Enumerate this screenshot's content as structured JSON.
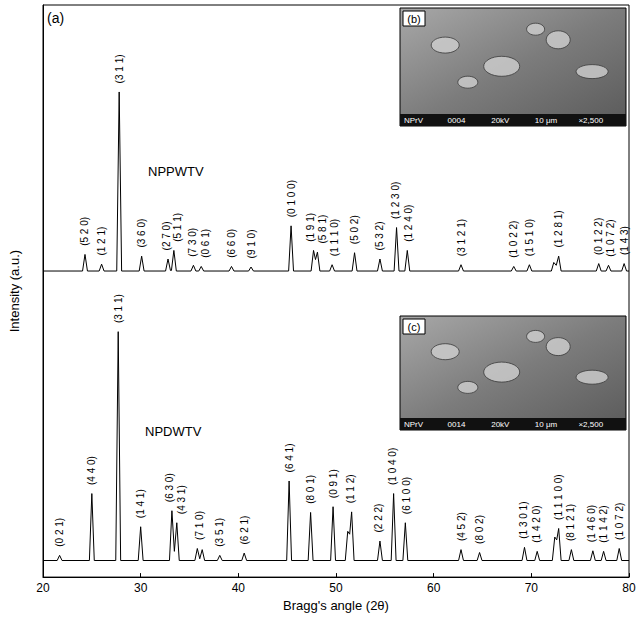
{
  "chart_data": {
    "type": "line",
    "panel_label": "(a)",
    "x_label": "Bragg's angle (2θ)",
    "y_label": "Intensity (a.u.)",
    "xlim": [
      20,
      80
    ],
    "xticks": [
      20,
      30,
      40,
      50,
      60,
      70,
      80
    ],
    "ylim": [
      0,
      100
    ],
    "yticks": [],
    "grid": false,
    "tick_labels": "x",
    "series": [
      {
        "name": "NPPWTV",
        "color": "#000000",
        "x": [
          20,
          24.05,
          24.3,
          24.55,
          25.75,
          26.0,
          26.25,
          27.55,
          27.8,
          28.05,
          29.85,
          30.1,
          30.35,
          32.55,
          32.8,
          33.05,
          33.15,
          33.4,
          33.65,
          35.15,
          35.4,
          35.65,
          35.95,
          36.2,
          36.45,
          39.05,
          39.3,
          39.55,
          41.05,
          41.3,
          41.55,
          45.15,
          45.4,
          45.65,
          47.45,
          47.7,
          47.9,
          48.1,
          48.35,
          49.35,
          49.6,
          49.85,
          51.65,
          51.9,
          52.15,
          54.25,
          54.5,
          54.75,
          55.95,
          56.2,
          56.45,
          57.05,
          57.3,
          57.55,
          62.55,
          62.8,
          63.05,
          67.95,
          68.2,
          68.45,
          69.55,
          69.8,
          70.05,
          72.05,
          72.3,
          72.55,
          72.8,
          73.05,
          76.65,
          76.9,
          77.15,
          77.65,
          77.9,
          78.15,
          79.25,
          79.5,
          79.75,
          80
        ],
        "values": [
          53.5,
          53.5,
          56.4,
          53.5,
          53.5,
          54.7,
          53.5,
          53.5,
          84.8,
          53.5,
          53.5,
          56.1,
          53.5,
          53.5,
          55.6,
          53.6,
          53.6,
          57.1,
          53.5,
          53.5,
          54.5,
          53.5,
          53.5,
          54.3,
          53.5,
          53.5,
          54.3,
          53.5,
          53.5,
          54.2,
          53.5,
          53.5,
          61.4,
          53.5,
          53.5,
          57.1,
          55.5,
          56.8,
          53.5,
          53.5,
          54.6,
          53.5,
          53.5,
          56.7,
          53.5,
          53.5,
          55.6,
          53.5,
          53.5,
          61.1,
          53.5,
          53.5,
          57.1,
          53.5,
          53.5,
          54.6,
          53.5,
          53.5,
          54.3,
          53.5,
          53.5,
          54.6,
          53.5,
          53.5,
          55.0,
          54.5,
          56.1,
          53.5,
          53.5,
          54.8,
          53.5,
          53.5,
          54.5,
          53.5,
          53.5,
          54.8,
          53.5,
          53.5
        ],
        "annotations": [
          {
            "text": "(5 2 0)",
            "x": 24.3,
            "y": 57.9
          },
          {
            "text": "(1 2 1)",
            "x": 26.0,
            "y": 56.2
          },
          {
            "text": "(3 1 1)",
            "x": 27.8,
            "y": 86.3
          },
          {
            "text": "(3 6 0)",
            "x": 30.1,
            "y": 57.6
          },
          {
            "text": "(2 7 0)",
            "x": 32.6,
            "y": 57.1
          },
          {
            "text": "(5 1 1)",
            "x": 33.8,
            "y": 58.6
          },
          {
            "text": "(7 3 0)",
            "x": 35.3,
            "y": 56.0
          },
          {
            "text": "(0 6 1)",
            "x": 36.6,
            "y": 55.8
          },
          {
            "text": "(6 6 0)",
            "x": 39.3,
            "y": 55.8
          },
          {
            "text": "(9 1 0)",
            "x": 41.3,
            "y": 55.7
          },
          {
            "text": "(0 1 0 0)",
            "x": 45.4,
            "y": 62.9
          },
          {
            "text": "(1 9 1)",
            "x": 47.4,
            "y": 58.6
          },
          {
            "text": "(5 8 1)",
            "x": 48.6,
            "y": 58.3
          },
          {
            "text": "(1 1 1 0)",
            "x": 49.8,
            "y": 56.1
          },
          {
            "text": "(5 0 2)",
            "x": 51.9,
            "y": 58.2
          },
          {
            "text": "(5 3 2)",
            "x": 54.5,
            "y": 57.1
          },
          {
            "text": "(1 2 3 0)",
            "x": 56.1,
            "y": 62.6
          },
          {
            "text": "(1 2 4 0)",
            "x": 57.4,
            "y": 58.6
          },
          {
            "text": "(3 1 2 1)",
            "x": 62.8,
            "y": 56.1
          },
          {
            "text": "(1 0 2 2)",
            "x": 68.2,
            "y": 55.8
          },
          {
            "text": "(1 5 1 0)",
            "x": 69.8,
            "y": 56.1
          },
          {
            "text": "(1 2 8 1)",
            "x": 72.8,
            "y": 57.6
          },
          {
            "text": "(0 1 2 2)",
            "x": 76.9,
            "y": 56.3
          },
          {
            "text": "(1 0 7 2)",
            "x": 78.1,
            "y": 56.0
          },
          {
            "text": "(1 4 3)",
            "x": 79.5,
            "y": 56.3
          }
        ]
      },
      {
        "name": "NPDWTV",
        "color": "#000000",
        "x": [
          20,
          21.45,
          21.7,
          21.95,
          24.75,
          25.0,
          25.25,
          27.45,
          27.7,
          27.95,
          29.75,
          30.0,
          30.25,
          32.95,
          33.2,
          33.45,
          33.7,
          33.95,
          35.55,
          35.8,
          36.05,
          36.3,
          36.55,
          37.85,
          38.1,
          38.35,
          40.35,
          40.6,
          40.85,
          44.95,
          45.2,
          45.45,
          47.15,
          47.4,
          47.65,
          49.45,
          49.7,
          49.95,
          50.95,
          51.2,
          51.4,
          51.6,
          51.85,
          54.25,
          54.5,
          54.75,
          55.65,
          55.9,
          56.15,
          56.85,
          57.1,
          57.35,
          62.55,
          62.8,
          63.05,
          64.45,
          64.7,
          64.95,
          69.05,
          69.3,
          69.55,
          70.35,
          70.6,
          70.85,
          72.15,
          72.4,
          72.6,
          72.8,
          73.05,
          73.85,
          74.1,
          74.35,
          76.05,
          76.3,
          76.55,
          77.15,
          77.4,
          77.65,
          78.75,
          79.0,
          79.25,
          80
        ],
        "values": [
          2.9,
          2.9,
          3.8,
          2.9,
          2.9,
          14.6,
          2.9,
          2.9,
          42.9,
          2.9,
          2.9,
          8.8,
          2.9,
          2.9,
          11.6,
          4.5,
          9.5,
          2.9,
          2.9,
          5.0,
          3.2,
          4.8,
          2.9,
          2.9,
          3.8,
          2.9,
          2.9,
          4.2,
          2.9,
          2.9,
          16.8,
          2.9,
          2.9,
          11.3,
          2.9,
          2.9,
          12.3,
          2.9,
          2.9,
          8.0,
          7.5,
          11.4,
          2.9,
          2.9,
          6.3,
          2.9,
          2.9,
          14.6,
          2.9,
          2.9,
          9.5,
          2.9,
          2.9,
          4.8,
          2.9,
          2.9,
          4.3,
          2.9,
          2.9,
          5.2,
          2.9,
          2.9,
          4.5,
          2.9,
          2.9,
          7.0,
          6.5,
          8.5,
          2.9,
          2.9,
          4.8,
          2.9,
          2.9,
          4.6,
          2.9,
          2.9,
          4.5,
          2.9,
          2.9,
          5.0,
          2.9,
          2.9
        ],
        "annotations": [
          {
            "text": "(0 2 1)",
            "x": 21.7,
            "y": 5.3
          },
          {
            "text": "(4 4 0)",
            "x": 25.0,
            "y": 16.1
          },
          {
            "text": "(3 1 1)",
            "x": 27.7,
            "y": 44.4
          },
          {
            "text": "(1 4 1)",
            "x": 30.0,
            "y": 10.3
          },
          {
            "text": "(6 3 0)",
            "x": 33.0,
            "y": 13.1
          },
          {
            "text": "(4 3 1)",
            "x": 34.2,
            "y": 11.0
          },
          {
            "text": "(7 1 0)",
            "x": 36.0,
            "y": 6.5
          },
          {
            "text": "(3 5 1)",
            "x": 38.1,
            "y": 5.3
          },
          {
            "text": "(6 2 1)",
            "x": 40.6,
            "y": 5.7
          },
          {
            "text": "(6 4 1)",
            "x": 45.2,
            "y": 18.3
          },
          {
            "text": "(8 0 1)",
            "x": 47.4,
            "y": 12.8
          },
          {
            "text": "(0 9 1)",
            "x": 49.7,
            "y": 13.8
          },
          {
            "text": "(1 1 2)",
            "x": 51.5,
            "y": 12.9
          },
          {
            "text": "(2 2 2)",
            "x": 54.4,
            "y": 7.8
          },
          {
            "text": "(1 0 4 0)",
            "x": 55.8,
            "y": 16.1
          },
          {
            "text": "(6 1 0 0)",
            "x": 57.2,
            "y": 11.0
          },
          {
            "text": "(4 5 2)",
            "x": 62.8,
            "y": 6.3
          },
          {
            "text": "(8 0 2)",
            "x": 64.7,
            "y": 5.8
          },
          {
            "text": "(1 3 0 1)",
            "x": 69.2,
            "y": 6.7
          },
          {
            "text": "(1 4 2 0)",
            "x": 70.5,
            "y": 6.0
          },
          {
            "text": "(1 1 1 0 0)",
            "x": 72.8,
            "y": 10.0
          },
          {
            "text": "(8 1 2 1)",
            "x": 74.0,
            "y": 6.3
          },
          {
            "text": "(1 4 6 0)",
            "x": 76.2,
            "y": 6.1
          },
          {
            "text": "(1 1 4 2)",
            "x": 77.4,
            "y": 6.0
          },
          {
            "text": "(1 0 7 2)",
            "x": 79.0,
            "y": 6.5
          }
        ]
      }
    ],
    "insets": [
      {
        "label": "(b)",
        "caption": [
          "NPrV",
          "0004",
          "20kV",
          "10 μm",
          "×2,500"
        ]
      },
      {
        "label": "(c)",
        "caption": [
          "NPrV",
          "0014",
          "20kV",
          "10 μm",
          "×2,500"
        ]
      }
    ]
  }
}
